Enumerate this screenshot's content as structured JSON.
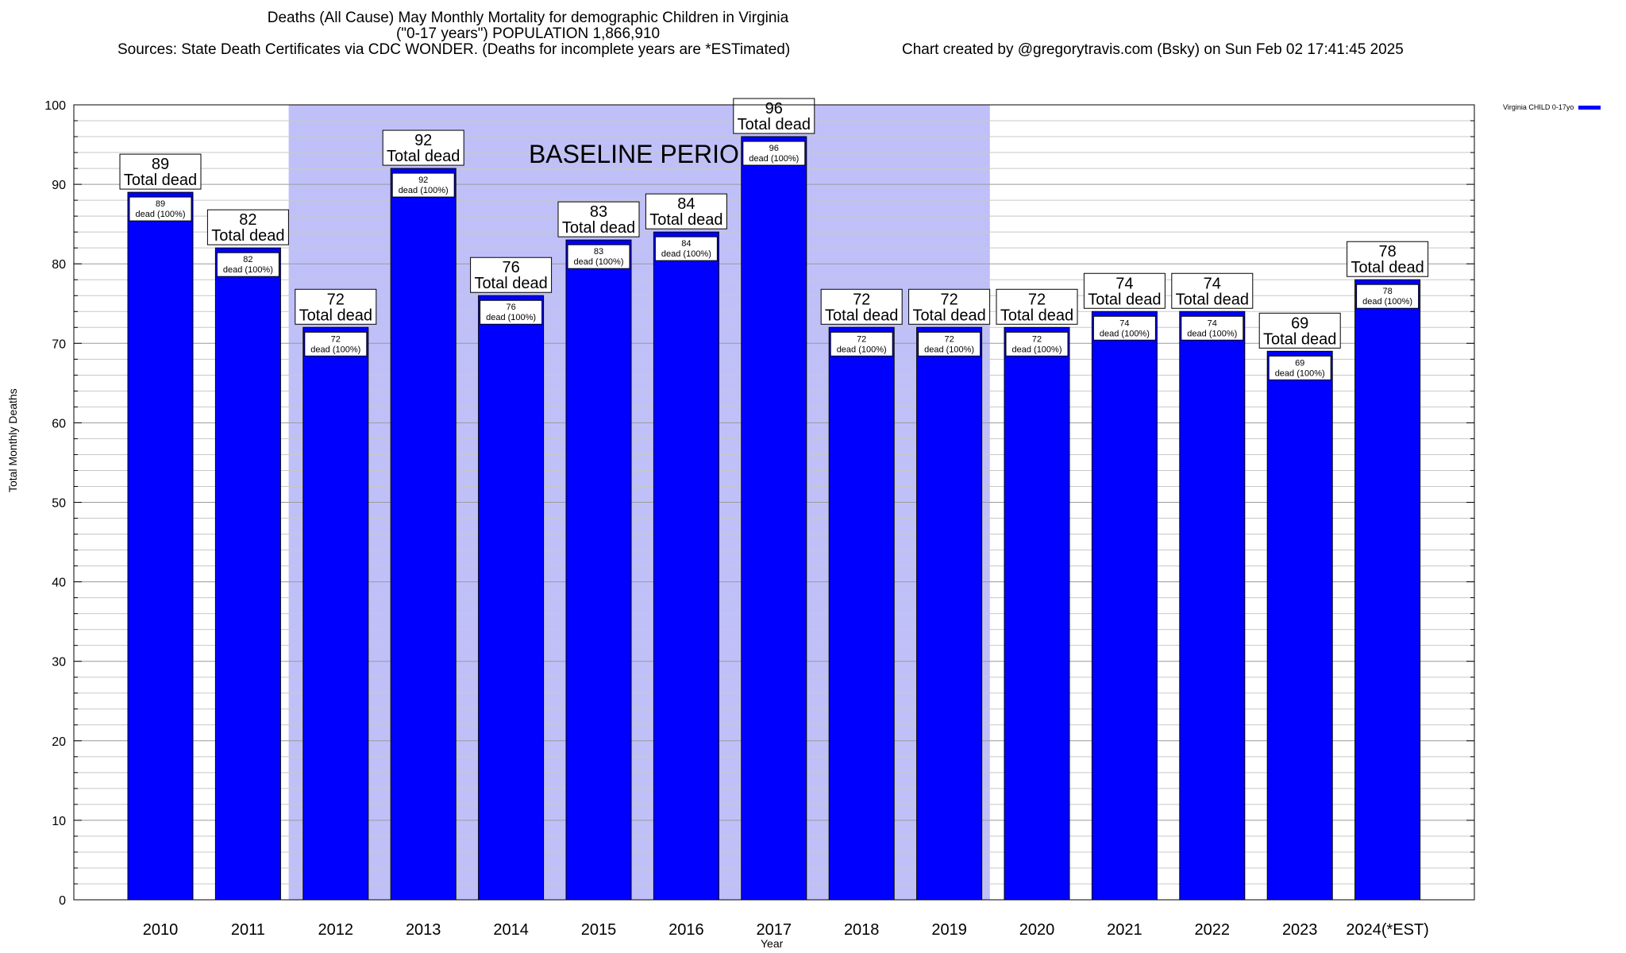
{
  "chart_data": {
    "type": "bar",
    "title": "Deaths (All Cause) May Monthly Mortality for demographic Children in Virginia",
    "subtitle": "(\"0-17 years\") POPULATION 1,866,910",
    "sources": "Sources: State Death Certificates via CDC WONDER. (Deaths for incomplete years are *ESTimated)",
    "credit": "Chart created by @gregorytravis.com (Bsky) on Sun Feb 02 17:41:45 2025",
    "xlabel": "Year",
    "ylabel": "Total Monthly Deaths",
    "ylim": [
      0,
      100
    ],
    "yticks": [
      0,
      10,
      20,
      30,
      40,
      50,
      60,
      70,
      80,
      90,
      100
    ],
    "categories": [
      "2010",
      "2011",
      "2012",
      "2013",
      "2014",
      "2015",
      "2016",
      "2017",
      "2018",
      "2019",
      "2020",
      "2021",
      "2022",
      "2023",
      "2024(*EST)"
    ],
    "series": [
      {
        "name": "Virginia CHILD 0-17yo",
        "color": "#0000ff",
        "values": [
          89,
          82,
          72,
          92,
          76,
          83,
          84,
          96,
          72,
          72,
          72,
          74,
          74,
          69,
          78
        ]
      }
    ],
    "total_label": "Total dead",
    "inner_label": "dead (100%)",
    "baseline": {
      "label": "BASELINE PERIOD",
      "start": "2012",
      "end": "2019",
      "color": "#c0c0f8"
    },
    "legend_position": "top-right",
    "grid": true
  }
}
